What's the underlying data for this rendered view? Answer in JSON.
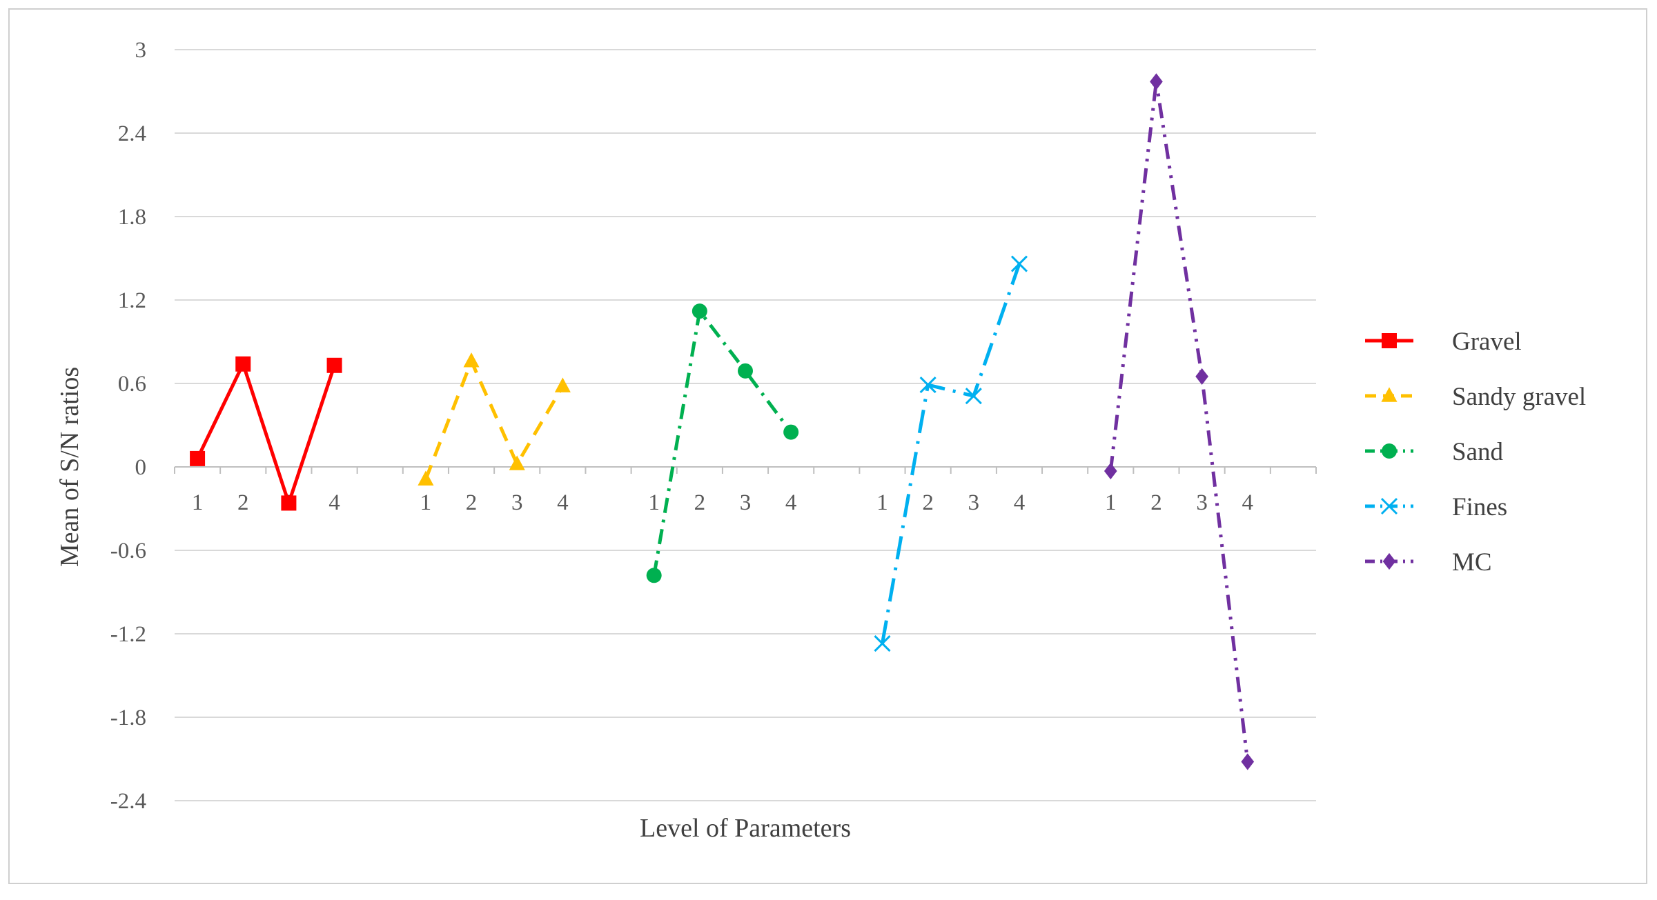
{
  "chart_data": {
    "type": "line",
    "title": "",
    "xlabel": "Level of Parameters",
    "ylabel": "Mean of S/N ratios",
    "ylim": [
      -2.4,
      3
    ],
    "yticks": [
      3,
      2.4,
      1.8,
      1.2,
      0.6,
      0,
      -0.6,
      -1.2,
      -1.8,
      -2.4
    ],
    "ytick_labels": [
      "3",
      "2.4",
      "1.8",
      "1.2",
      "0.6",
      "0",
      "-0.6",
      "-1.2",
      "-1.8",
      "-2.4"
    ],
    "categories": [
      "1",
      "2",
      "3",
      "4"
    ],
    "grid": true,
    "legend_position": "right",
    "series": [
      {
        "name": "Gravel",
        "x": [
          "1",
          "2",
          "3",
          "4"
        ],
        "values": [
          0.06,
          0.74,
          -0.26,
          0.73
        ],
        "color": "#ff0000",
        "marker": "square",
        "dash": "solid"
      },
      {
        "name": "Sandy gravel",
        "x": [
          "1",
          "2",
          "3",
          "4"
        ],
        "values": [
          -0.09,
          0.76,
          0.02,
          0.58
        ],
        "color": "#ffc000",
        "marker": "triangle",
        "dash": "dash"
      },
      {
        "name": "Sand",
        "x": [
          "1",
          "2",
          "3",
          "4"
        ],
        "values": [
          -0.78,
          1.12,
          0.69,
          0.25
        ],
        "color": "#00b050",
        "marker": "circle",
        "dash": "dashdot"
      },
      {
        "name": "Fines",
        "x": [
          "1",
          "2",
          "3",
          "4"
        ],
        "values": [
          -1.27,
          0.59,
          0.51,
          1.46
        ],
        "color": "#00b0f0",
        "marker": "x",
        "dash": "longdashdot"
      },
      {
        "name": "MC",
        "x": [
          "1",
          "2",
          "3",
          "4"
        ],
        "values": [
          -0.03,
          2.77,
          0.65,
          -2.12
        ],
        "color": "#7030a0",
        "marker": "diamond",
        "dash": "dashdotdot"
      }
    ]
  }
}
